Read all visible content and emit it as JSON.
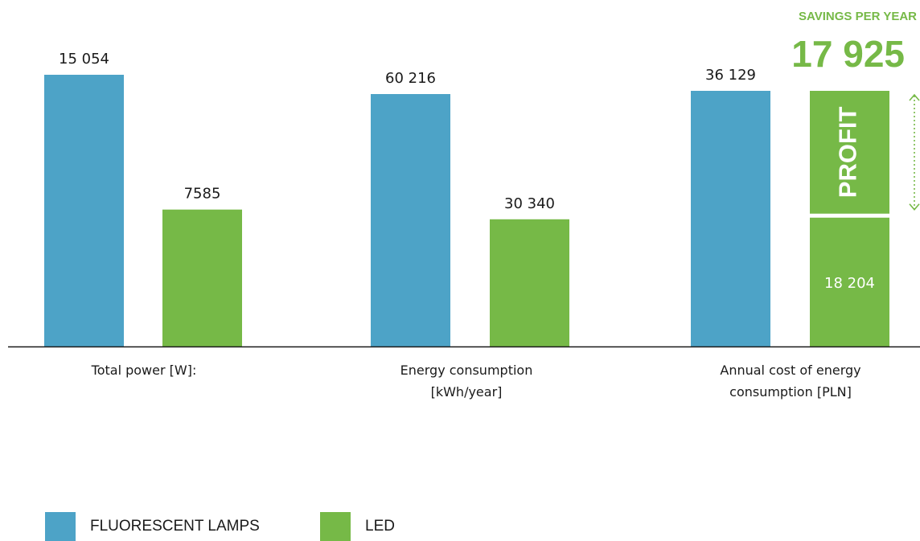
{
  "savings": {
    "label": "SAVINGS PER YEAR",
    "value": "17 925",
    "profit_label": "PROFIT"
  },
  "legend": [
    {
      "label": "FLUORESCENT LAMPS",
      "color": "#4da3c7"
    },
    {
      "label": "LED",
      "color": "#76b947"
    }
  ],
  "chart_data": {
    "type": "bar",
    "categories": [
      [
        "Total power [W]:"
      ],
      [
        "Energy consumption",
        "[kWh/year]"
      ],
      [
        "Annual cost of energy",
        "consumption [PLN]"
      ]
    ],
    "series": [
      {
        "name": "FLUORESCENT LAMPS",
        "color": "#4da3c7",
        "values": [
          15054,
          60216,
          36129
        ],
        "labels": [
          "15 054",
          "60 216",
          "36 129"
        ]
      },
      {
        "name": "LED",
        "color": "#76b947",
        "values": [
          7585,
          30340,
          18204
        ],
        "labels": [
          "7585",
          "30 340",
          "18 204"
        ]
      }
    ],
    "stacked_profit": {
      "category_index": 2,
      "value": 17925,
      "label": "PROFIT"
    },
    "colors": {
      "fluorescent": "#4da3c7",
      "led": "#76b947",
      "axis": "#1a1a1a",
      "arrow": "#76b947"
    }
  }
}
